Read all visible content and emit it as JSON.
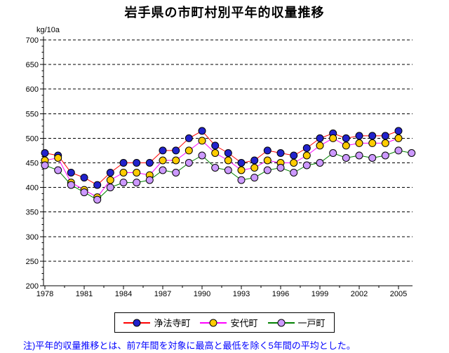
{
  "title": "岩手県の市町村別平年的収量推移",
  "note": "注)平年的収量推移とは、前7年間を対象に最高と最低を除く5年間の平均とした。",
  "chart_data": {
    "type": "line",
    "title": "岩手県の市町村別平年的収量推移",
    "y_unit": "kg/10a",
    "ylim": [
      200,
      700
    ],
    "ytick_step": 50,
    "grid": "horizontal-dashed-black",
    "legend_position": "bottom-center",
    "years": [
      1978,
      1979,
      1980,
      1981,
      1982,
      1983,
      1984,
      1985,
      1986,
      1987,
      1988,
      1989,
      1990,
      1991,
      1992,
      1993,
      1994,
      1995,
      1996,
      1997,
      1998,
      1999,
      2000,
      2001,
      2002,
      2003,
      2004,
      2005
    ],
    "xtick_years": [
      1978,
      1981,
      1984,
      1987,
      1990,
      1993,
      1996,
      1999,
      2002,
      2005
    ],
    "series": [
      {
        "name": "浄法寺町",
        "line_color": "#FF0000",
        "marker_color": "#2222CC",
        "values": [
          470,
          465,
          430,
          420,
          405,
          430,
          450,
          450,
          450,
          475,
          475,
          500,
          515,
          485,
          470,
          450,
          455,
          475,
          470,
          465,
          480,
          500,
          510,
          500,
          505,
          505,
          505,
          515
        ]
      },
      {
        "name": "安代町",
        "line_color": "#FF00FF",
        "marker_color": "#FFCC00",
        "values": [
          455,
          460,
          410,
          395,
          380,
          415,
          430,
          430,
          425,
          455,
          455,
          475,
          495,
          470,
          455,
          435,
          440,
          455,
          450,
          450,
          465,
          485,
          500,
          485,
          490,
          490,
          490,
          500
        ]
      },
      {
        "name": "一戸町",
        "line_color": "#008000",
        "marker_color": "#CC99FF",
        "values": [
          445,
          435,
          405,
          390,
          375,
          400,
          410,
          410,
          415,
          435,
          430,
          450,
          465,
          440,
          435,
          415,
          420,
          435,
          440,
          430,
          445,
          450,
          470,
          460,
          465,
          460,
          465,
          475
        ],
        "extra_point": {
          "year": 2006,
          "value": 470
        }
      }
    ]
  }
}
